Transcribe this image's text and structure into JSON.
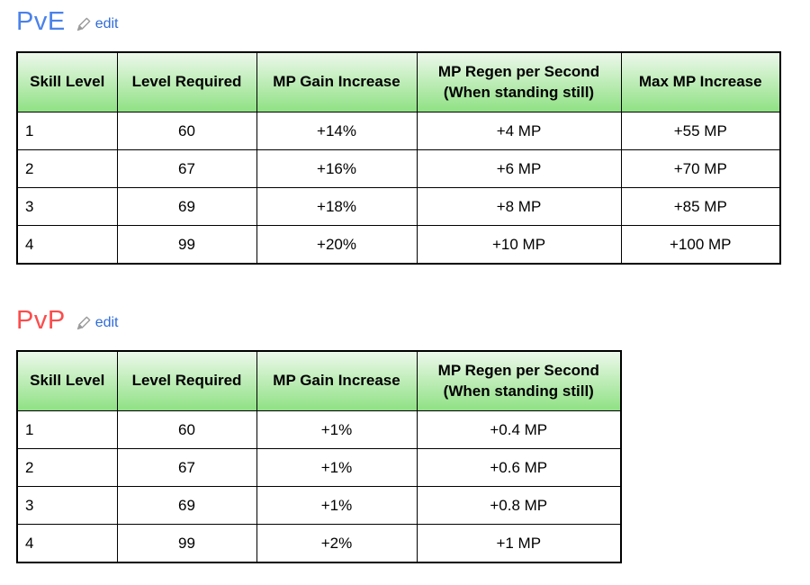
{
  "colors": {
    "edit_link": "#2f6bd9",
    "pencil_icon": "#9b9b9b",
    "table_border": "#000000",
    "header_gradient_top": "#edf8eb",
    "header_gradient_bottom": "#8fe184"
  },
  "sections": [
    {
      "title": "PvE",
      "title_color": "#4a82e9",
      "edit_label": "edit",
      "table": {
        "headers": [
          "Skill Level",
          "Level Required",
          "MP Gain Increase",
          "MP Regen per Second (When standing still)",
          "Max MP Increase"
        ],
        "col_align_first": "left",
        "rows": [
          [
            "1",
            "60",
            "+14%",
            "+4 MP",
            "+55 MP"
          ],
          [
            "2",
            "67",
            "+16%",
            "+6 MP",
            "+70 MP"
          ],
          [
            "3",
            "69",
            "+18%",
            "+8 MP",
            "+85 MP"
          ],
          [
            "4",
            "99",
            "+20%",
            "+10 MP",
            "+100 MP"
          ]
        ]
      }
    },
    {
      "title": "PvP",
      "title_color": "#fb4c4c",
      "edit_label": "edit",
      "table": {
        "headers": [
          "Skill Level",
          "Level Required",
          "MP Gain Increase",
          "MP Regen per Second (When standing still)"
        ],
        "col_align_first": "left",
        "rows": [
          [
            "1",
            "60",
            "+1%",
            "+0.4 MP"
          ],
          [
            "2",
            "67",
            "+1%",
            "+0.6 MP"
          ],
          [
            "3",
            "69",
            "+1%",
            "+0.8 MP"
          ],
          [
            "4",
            "99",
            "+2%",
            "+1 MP"
          ]
        ]
      }
    }
  ]
}
